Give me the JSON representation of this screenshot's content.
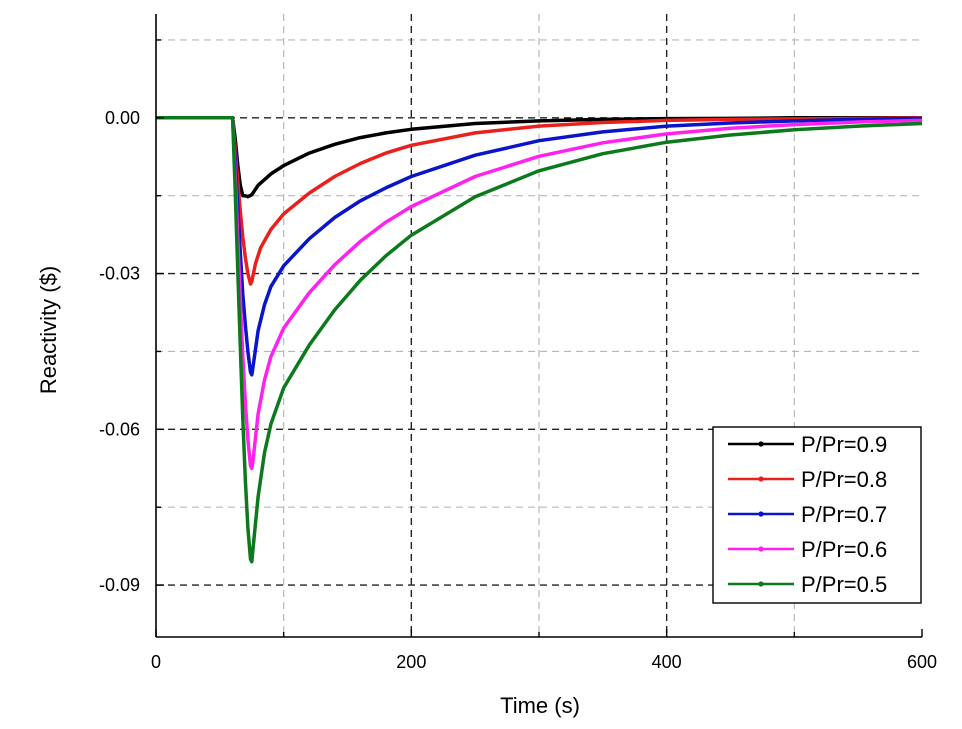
{
  "chart_data": {
    "type": "line",
    "title": "",
    "xlabel": "Time (s)",
    "ylabel": "Reactivity ($)",
    "xlim": [
      0,
      600
    ],
    "ylim": [
      -0.1,
      0.02
    ],
    "xticks": [
      0,
      200,
      400,
      600
    ],
    "xtick_labels": [
      "0",
      "200",
      "400",
      "600"
    ],
    "yticks": [
      0.0,
      -0.03,
      -0.06,
      -0.09
    ],
    "ytick_labels": [
      "0.00",
      "-0.03",
      "-0.06",
      "-0.09"
    ],
    "grid": true,
    "legend_position": "bottom-right",
    "series": [
      {
        "name": "P/Pr=0.9",
        "color": "#000000",
        "x": [
          0,
          60,
          62,
          64,
          66,
          68,
          70,
          72,
          75,
          80,
          90,
          100,
          120,
          140,
          160,
          180,
          200,
          250,
          300,
          350,
          400,
          450,
          500,
          550,
          600
        ],
        "y": [
          0,
          0,
          -0.004,
          -0.009,
          -0.013,
          -0.015,
          -0.015,
          -0.0152,
          -0.0148,
          -0.013,
          -0.0108,
          -0.0092,
          -0.0068,
          -0.0051,
          -0.0038,
          -0.0029,
          -0.0022,
          -0.0011,
          -0.0006,
          -0.0003,
          -0.00015,
          -0.0001,
          0,
          0,
          0
        ]
      },
      {
        "name": "P/Pr=0.8",
        "color": "#e8211c",
        "x": [
          0,
          60,
          62,
          64,
          66,
          68,
          70,
          72,
          74,
          75,
          78,
          82,
          90,
          100,
          120,
          140,
          160,
          180,
          200,
          250,
          300,
          350,
          400,
          450,
          500,
          550,
          600
        ],
        "y": [
          0,
          0,
          -0.006,
          -0.012,
          -0.018,
          -0.023,
          -0.027,
          -0.03,
          -0.032,
          -0.0315,
          -0.028,
          -0.025,
          -0.0215,
          -0.0185,
          -0.0145,
          -0.0113,
          -0.0088,
          -0.0068,
          -0.0053,
          -0.0029,
          -0.0016,
          -0.0009,
          -0.0005,
          -0.0003,
          -0.0002,
          -0.0001,
          0
        ]
      },
      {
        "name": "P/Pr=0.7",
        "color": "#0a14c8",
        "x": [
          0,
          60,
          62,
          64,
          66,
          68,
          70,
          72,
          74,
          75,
          76,
          80,
          85,
          90,
          100,
          120,
          140,
          160,
          180,
          200,
          250,
          300,
          350,
          400,
          450,
          500,
          550,
          600
        ],
        "y": [
          0,
          0,
          -0.008,
          -0.017,
          -0.026,
          -0.034,
          -0.04,
          -0.045,
          -0.049,
          -0.0495,
          -0.048,
          -0.041,
          -0.036,
          -0.0325,
          -0.0285,
          -0.0233,
          -0.0192,
          -0.016,
          -0.0135,
          -0.0113,
          -0.0072,
          -0.0044,
          -0.0027,
          -0.0016,
          -0.001,
          -0.0006,
          -0.0003,
          -0.0001
        ]
      },
      {
        "name": "P/Pr=0.6",
        "color": "#ff22ee",
        "x": [
          0,
          60,
          62,
          64,
          66,
          68,
          70,
          72,
          74,
          75,
          76,
          80,
          85,
          90,
          100,
          120,
          140,
          160,
          180,
          200,
          250,
          300,
          350,
          400,
          450,
          500,
          550,
          600
        ],
        "y": [
          0,
          0,
          -0.011,
          -0.023,
          -0.035,
          -0.046,
          -0.055,
          -0.062,
          -0.067,
          -0.0675,
          -0.066,
          -0.057,
          -0.0505,
          -0.046,
          -0.0405,
          -0.0337,
          -0.0283,
          -0.0238,
          -0.0201,
          -0.0171,
          -0.0113,
          -0.0074,
          -0.0048,
          -0.0031,
          -0.002,
          -0.0013,
          -0.0008,
          -0.0005
        ]
      },
      {
        "name": "P/Pr=0.5",
        "color": "#0c7a1c",
        "x": [
          0,
          60,
          62,
          64,
          66,
          68,
          70,
          72,
          74,
          75,
          76,
          80,
          85,
          90,
          100,
          120,
          140,
          160,
          180,
          200,
          250,
          300,
          350,
          400,
          450,
          500,
          550,
          600
        ],
        "y": [
          0,
          0,
          -0.014,
          -0.029,
          -0.044,
          -0.058,
          -0.07,
          -0.079,
          -0.085,
          -0.0855,
          -0.083,
          -0.073,
          -0.0645,
          -0.059,
          -0.052,
          -0.0438,
          -0.037,
          -0.0313,
          -0.0266,
          -0.0226,
          -0.0152,
          -0.0102,
          -0.0069,
          -0.0047,
          -0.0033,
          -0.0023,
          -0.0016,
          -0.0011
        ]
      }
    ]
  }
}
